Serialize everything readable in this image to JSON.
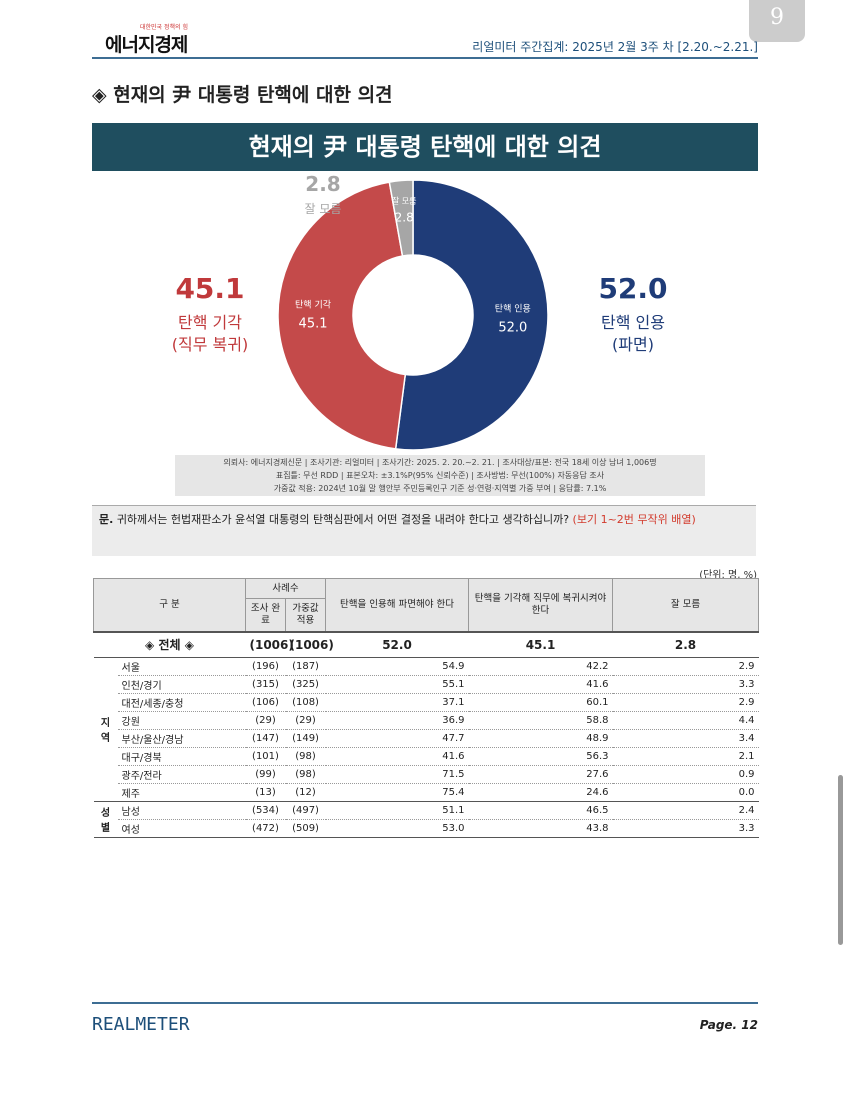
{
  "header": {
    "page_badge": "9",
    "logo": "에너지경제",
    "logo_sub": "대한민국 정책의 힘",
    "period": "리얼미터 주간집계: 2025년 2월 3주 차 [2.20.~2.21.]"
  },
  "section_title": "◈ 현재의 尹 대통령 탄핵에 대한 의견",
  "chart_data": {
    "type": "pie",
    "title": "현재의 尹 대통령 탄핵에 대한 의견",
    "categories": [
      "탄핵 인용",
      "탄핵 기각",
      "잘 모름"
    ],
    "values": [
      52.0,
      45.1,
      2.8
    ],
    "value_labels": [
      "52.0",
      "45.1",
      "2.8"
    ],
    "colors": [
      "#1f3c78",
      "#c44a4a",
      "#a6a6a6"
    ],
    "outer_notes": [
      "(파면)",
      "(직무 복귀)"
    ]
  },
  "notes": [
    "의뢰사: 에너지경제신문 | 조사기관: 리얼미터 | 조사기간: 2025. 2. 20.~2. 21. | 조사대상/표본: 전국 18세 이상 남녀 1,006명",
    "표집틀: 무선 RDD | 표본오차: ±3.1%P(95% 신뢰수준) | 조사방법: 무선(100%) 자동응답 조사",
    "가중값 적용: 2024년 10월 말 행안부 주민등록인구 기준 성·연령·지역별 가중 부여 | 응답률: 7.1%"
  ],
  "question": {
    "prefix": "문.",
    "text": "귀하께서는 헌법재판소가 윤석열 대통령의 탄핵심판에서 어떤 결정을 내려야 한다고 생각하십니까?",
    "note": "(보기 1~2번 무작위 배열)"
  },
  "table": {
    "unit": "(단위: 명, %)",
    "header": {
      "group": "구 분",
      "sample": "사례수",
      "sample_done": "조사 완료",
      "sample_weighted": "가중값 적용",
      "col1": "탄핵을 인용해 파면해야 한다",
      "col2": "탄핵을 기각해 직무에 복귀시켜야 한다",
      "col3": "잘 모름"
    },
    "total": [
      "◈ 전체 ◈",
      "(1006)",
      "(1006)",
      "52.0",
      "45.1",
      "2.8"
    ],
    "groups": [
      {
        "label": "지역",
        "rows": [
          [
            "서울",
            "(196)",
            "(187)",
            "54.9",
            "42.2",
            "2.9"
          ],
          [
            "인천/경기",
            "(315)",
            "(325)",
            "55.1",
            "41.6",
            "3.3"
          ],
          [
            "대전/세종/충청",
            "(106)",
            "(108)",
            "37.1",
            "60.1",
            "2.9"
          ],
          [
            "강원",
            "(29)",
            "(29)",
            "36.9",
            "58.8",
            "4.4"
          ],
          [
            "부산/울산/경남",
            "(147)",
            "(149)",
            "47.7",
            "48.9",
            "3.4"
          ],
          [
            "대구/경북",
            "(101)",
            "(98)",
            "41.6",
            "56.3",
            "2.1"
          ],
          [
            "광주/전라",
            "(99)",
            "(98)",
            "71.5",
            "27.6",
            "0.9"
          ],
          [
            "제주",
            "(13)",
            "(12)",
            "75.4",
            "24.6",
            "0.0"
          ]
        ]
      },
      {
        "label": "성별",
        "rows": [
          [
            "남성",
            "(534)",
            "(497)",
            "51.1",
            "46.5",
            "2.4"
          ],
          [
            "여성",
            "(472)",
            "(509)",
            "53.0",
            "43.8",
            "3.3"
          ]
        ]
      }
    ]
  },
  "footer": {
    "brand": "REALMETER",
    "page": "Page. 12"
  }
}
